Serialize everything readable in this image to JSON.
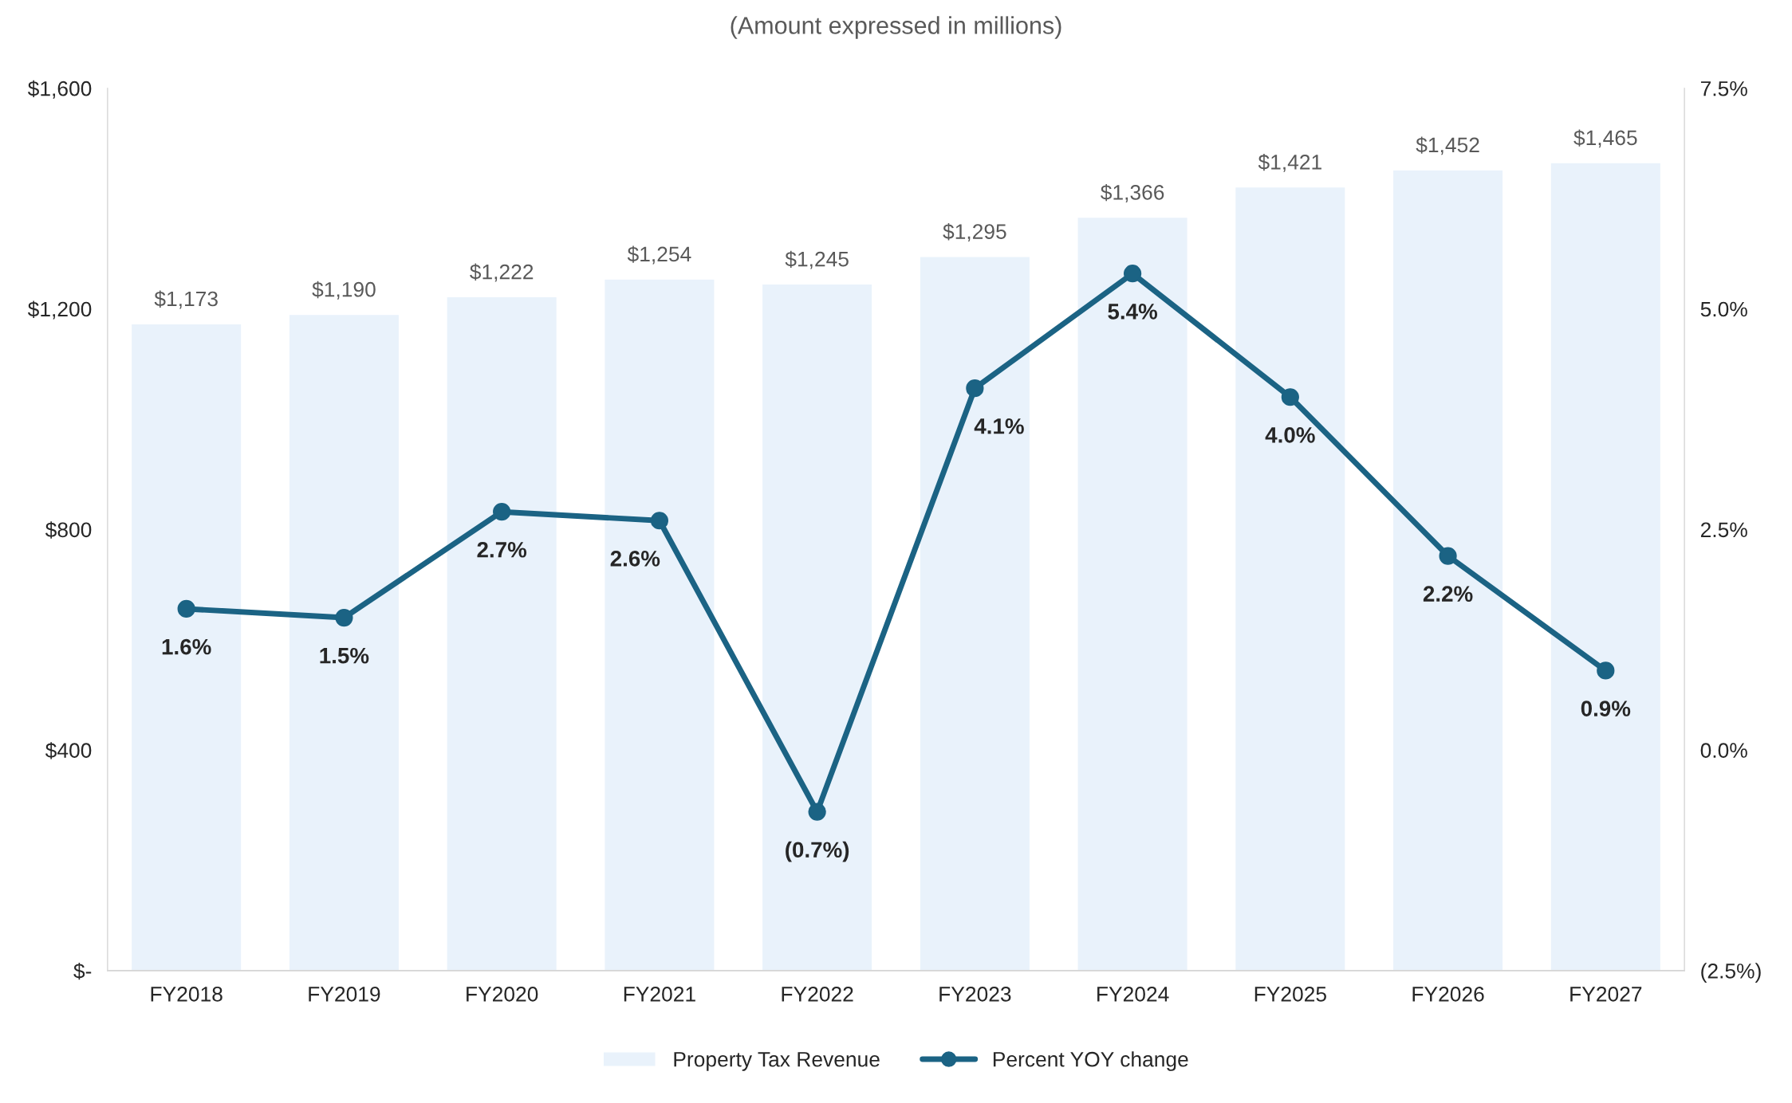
{
  "chart_data": {
    "type": "bar",
    "title": "(Amount expressed in millions)",
    "categories": [
      "FY2018",
      "FY2019",
      "FY2020",
      "FY2021",
      "FY2022",
      "FY2023",
      "FY2024",
      "FY2025",
      "FY2026",
      "FY2027"
    ],
    "series": [
      {
        "name": "Property Tax Revenue",
        "color": "#e9f2fb",
        "values": [
          1173,
          1190,
          1222,
          1254,
          1245,
          1295,
          1366,
          1421,
          1452,
          1465
        ],
        "value_labels": [
          "$1,173",
          "$1,190",
          "$1,222",
          "$1,254",
          "$1,245",
          "$1,295",
          "$1,366",
          "$1,421",
          "$1,452",
          "$1,465"
        ]
      },
      {
        "name": "Percent YOY change",
        "type": "line",
        "axis": "y2",
        "color": "#1b6384",
        "marker": "circle",
        "values": [
          1.6,
          1.5,
          2.7,
          2.6,
          -0.7,
          4.1,
          5.4,
          4.0,
          2.2,
          0.9
        ],
        "value_labels": [
          "1.6%",
          "1.5%",
          "2.7%",
          "2.6%",
          "(0.7%)",
          "4.1%",
          "5.4%",
          "4.0%",
          "2.2%",
          "0.9%"
        ]
      }
    ],
    "ylim": [
      0,
      1600
    ],
    "yticks": [
      {
        "value": 0,
        "label": "$-"
      },
      {
        "value": 400,
        "label": "$400"
      },
      {
        "value": 800,
        "label": "$800"
      },
      {
        "value": 1200,
        "label": "$1,200"
      },
      {
        "value": 1600,
        "label": "$1,600"
      }
    ],
    "y2lim": [
      -2.5,
      7.5
    ],
    "y2ticks": [
      {
        "value": -2.5,
        "label": "(2.5%)"
      },
      {
        "value": 0,
        "label": "0.0%"
      },
      {
        "value": 2.5,
        "label": "2.5%"
      },
      {
        "value": 5,
        "label": "5.0%"
      },
      {
        "value": 7.5,
        "label": "7.5%"
      }
    ],
    "grid": false,
    "legend": "bottom"
  }
}
